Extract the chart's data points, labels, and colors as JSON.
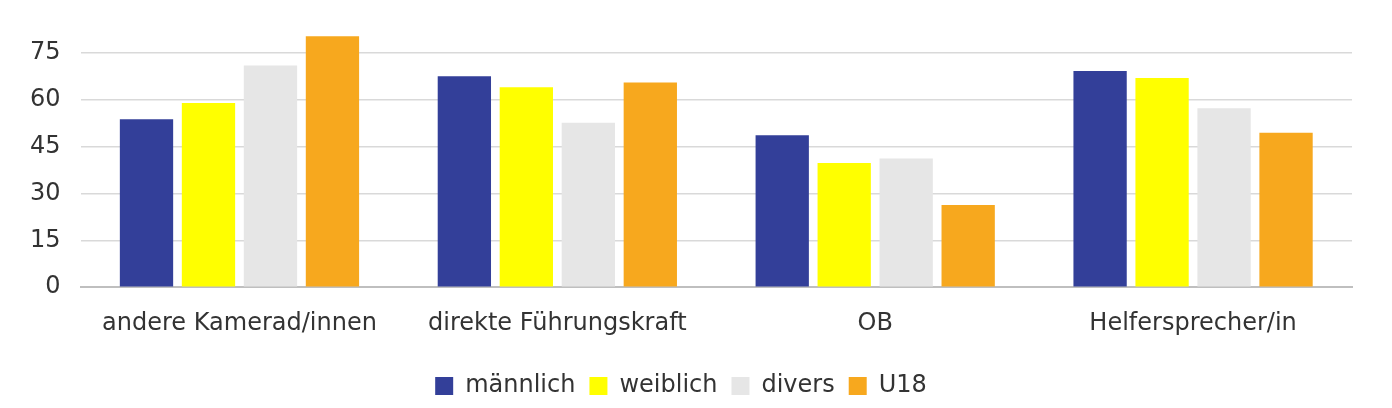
{
  "chart_data": {
    "type": "bar",
    "categories": [
      "andere Kamerad/innen",
      "direkte Führungskraft",
      "OB",
      "Helfersprecher/in"
    ],
    "series": [
      {
        "name": "männlich",
        "color": "#333f99",
        "values": [
          53.8,
          67.6,
          48.7,
          69.3
        ]
      },
      {
        "name": "weiblich",
        "color": "#ffff00",
        "values": [
          59.0,
          64.1,
          39.8,
          67.0
        ]
      },
      {
        "name": "divers",
        "color": "#e6e6e6",
        "values": [
          71.0,
          52.7,
          41.2,
          57.3
        ]
      },
      {
        "name": "U18",
        "color": "#f7a81e",
        "values": [
          80.4,
          65.6,
          26.3,
          49.5
        ]
      }
    ],
    "ylim": [
      0,
      81
    ],
    "yticks": [
      0,
      15,
      30,
      45,
      60,
      75
    ],
    "grid": "y",
    "legend": "bottom"
  }
}
